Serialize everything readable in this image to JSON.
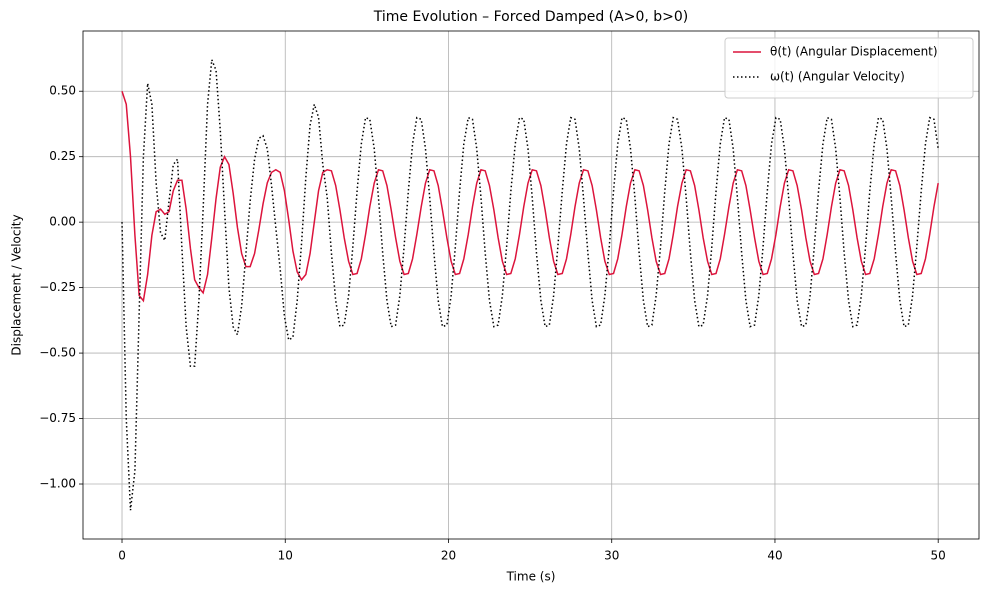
{
  "chart_data": {
    "type": "line",
    "title": "Time Evolution – Forced Damped (A>0, b>0)",
    "x_label": "Time (s)",
    "y_label": "Displacement / Velocity",
    "xlim": [
      -2.39,
      52.5
    ],
    "ylim": [
      -1.21,
      0.73
    ],
    "xticks": [
      0,
      10,
      20,
      30,
      40,
      50
    ],
    "yticks": [
      {
        "value": -1.0,
        "label": "−1.00"
      },
      {
        "value": -0.75,
        "label": "−0.75"
      },
      {
        "value": -0.5,
        "label": "−0.50"
      },
      {
        "value": -0.25,
        "label": "−0.25"
      },
      {
        "value": 0.0,
        "label": "0.00"
      },
      {
        "value": 0.25,
        "label": "0.25"
      },
      {
        "value": 0.5,
        "label": "0.50"
      }
    ],
    "grid": true,
    "legend": "upper right",
    "x": [
      0,
      0.26,
      0.52,
      0.79,
      1.05,
      1.31,
      1.57,
      1.83,
      2.09,
      2.36,
      2.62,
      2.88,
      3.14,
      3.4,
      3.67,
      3.93,
      4.19,
      4.45,
      4.71,
      4.97,
      5.24,
      5.5,
      5.76,
      6.02,
      6.28,
      6.55,
      6.81,
      7.07,
      7.33,
      7.59,
      7.85,
      8.12,
      8.38,
      8.64,
      8.9,
      9.16,
      9.42,
      9.69,
      9.95,
      10.21,
      10.47,
      10.73,
      11.0,
      11.26,
      11.52,
      11.78,
      12.04,
      12.3,
      12.57,
      12.83,
      13.09,
      13.35,
      13.61,
      13.88,
      14.14,
      14.4,
      14.66,
      14.92,
      15.18,
      15.45,
      15.71,
      15.97,
      16.23,
      16.49,
      16.76,
      17.02,
      17.28,
      17.54,
      17.8,
      18.06,
      18.33,
      18.59,
      18.85,
      19.11,
      19.37,
      19.63,
      19.9,
      20.16,
      20.42,
      20.68,
      20.94,
      21.21,
      21.47,
      21.73,
      21.99,
      22.25,
      22.51,
      22.78,
      23.04,
      23.3,
      23.56,
      23.82,
      24.09,
      24.35,
      24.61,
      24.87,
      25.13,
      25.39,
      25.66,
      25.92,
      26.18,
      26.44,
      26.7,
      26.97,
      27.23,
      27.49,
      27.75,
      28.01,
      28.27,
      28.54,
      28.8,
      29.06,
      29.32,
      29.58,
      29.85,
      30.11,
      30.37,
      30.63,
      30.89,
      31.15,
      31.42,
      31.68,
      31.94,
      32.2,
      32.46,
      32.72,
      32.99,
      33.25,
      33.51,
      33.77,
      34.03,
      34.3,
      34.56,
      34.82,
      35.08,
      35.34,
      35.6,
      35.87,
      36.13,
      36.39,
      36.65,
      36.91,
      37.18,
      37.44,
      37.7,
      37.96,
      38.22,
      38.48,
      38.75,
      39.01,
      39.27,
      39.53,
      39.79,
      40.06,
      40.32,
      40.58,
      40.84,
      41.1,
      41.36,
      41.63,
      41.89,
      42.15,
      42.41,
      42.67,
      42.94,
      43.2,
      43.46,
      43.72,
      43.98,
      44.24,
      44.51,
      44.77,
      45.03,
      45.29,
      45.55,
      45.81,
      46.08,
      46.34,
      46.6,
      46.86,
      47.12,
      47.39,
      47.65,
      47.91,
      48.17,
      48.43,
      48.69,
      48.96,
      49.22,
      49.48,
      49.74,
      50.0
    ],
    "series": [
      {
        "name": "θ(t) (Angular Displacement)",
        "color": "#dc143c",
        "linestyle": "solid",
        "values": [
          0.5,
          0.45,
          0.25,
          -0.05,
          -0.28,
          -0.3,
          -0.2,
          -0.05,
          0.04,
          0.05,
          0.03,
          0.04,
          0.12,
          0.16,
          0.16,
          0.05,
          -0.1,
          -0.22,
          -0.25,
          -0.27,
          -0.2,
          -0.06,
          0.09,
          0.21,
          0.25,
          0.22,
          0.11,
          -0.02,
          -0.12,
          -0.17,
          -0.17,
          -0.12,
          -0.03,
          0.07,
          0.15,
          0.19,
          0.2,
          0.19,
          0.12,
          0.01,
          -0.11,
          -0.19,
          -0.22,
          -0.2,
          -0.12,
          0.0,
          0.12,
          0.19,
          0.2,
          0.196,
          0.14,
          0.047,
          -0.059,
          -0.149,
          -0.2,
          -0.196,
          -0.14,
          -0.047,
          0.059,
          0.149,
          0.2,
          0.196,
          0.14,
          0.047,
          -0.059,
          -0.149,
          -0.2,
          -0.196,
          -0.14,
          -0.047,
          0.059,
          0.149,
          0.2,
          0.196,
          0.14,
          0.047,
          -0.059,
          -0.149,
          -0.2,
          -0.196,
          -0.14,
          -0.047,
          0.059,
          0.149,
          0.2,
          0.196,
          0.14,
          0.047,
          -0.059,
          -0.149,
          -0.2,
          -0.196,
          -0.14,
          -0.047,
          0.059,
          0.149,
          0.2,
          0.196,
          0.14,
          0.047,
          -0.059,
          -0.149,
          -0.2,
          -0.196,
          -0.14,
          -0.047,
          0.059,
          0.149,
          0.2,
          0.196,
          0.14,
          0.047,
          -0.059,
          -0.149,
          -0.2,
          -0.196,
          -0.14,
          -0.047,
          0.059,
          0.149,
          0.2,
          0.196,
          0.14,
          0.047,
          -0.059,
          -0.149,
          -0.2,
          -0.196,
          -0.14,
          -0.047,
          0.059,
          0.149,
          0.2,
          0.196,
          0.14,
          0.047,
          -0.059,
          -0.149,
          -0.2,
          -0.196,
          -0.14,
          -0.047,
          0.059,
          0.149,
          0.2,
          0.196,
          0.14,
          0.047,
          -0.059,
          -0.149,
          -0.2,
          -0.196,
          -0.14,
          -0.047,
          0.059,
          0.149,
          0.2,
          0.196,
          0.14,
          0.047,
          -0.059,
          -0.149,
          -0.2,
          -0.196,
          -0.14,
          -0.047,
          0.059,
          0.149,
          0.2,
          0.196,
          0.14,
          0.047,
          -0.059,
          -0.149,
          -0.2,
          -0.196,
          -0.14,
          -0.047,
          0.059,
          0.149,
          0.2,
          0.196,
          0.14,
          0.047,
          -0.059,
          -0.149,
          -0.2,
          -0.196,
          -0.14,
          -0.047,
          0.059,
          0.149
        ]
      },
      {
        "name": "ω(t) (Angular Velocity)",
        "color": "#000000",
        "linestyle": "dotted",
        "values": [
          0,
          -0.75,
          -1.1,
          -0.95,
          -0.35,
          0.25,
          0.53,
          0.45,
          0.15,
          -0.04,
          -0.07,
          0.08,
          0.22,
          0.24,
          -0.1,
          -0.4,
          -0.55,
          -0.55,
          -0.3,
          0.05,
          0.45,
          0.62,
          0.58,
          0.35,
          0.05,
          -0.25,
          -0.4,
          -0.43,
          -0.32,
          -0.12,
          0.08,
          0.24,
          0.32,
          0.33,
          0.28,
          0.14,
          -0.02,
          -0.18,
          -0.36,
          -0.45,
          -0.44,
          -0.3,
          -0.08,
          0.17,
          0.37,
          0.45,
          0.4,
          0.22,
          0.094,
          -0.118,
          -0.299,
          -0.399,
          -0.393,
          -0.281,
          -0.094,
          0.118,
          0.299,
          0.399,
          0.393,
          0.281,
          0.094,
          -0.118,
          -0.299,
          -0.399,
          -0.393,
          -0.281,
          -0.094,
          0.118,
          0.299,
          0.399,
          0.393,
          0.281,
          0.094,
          -0.118,
          -0.299,
          -0.399,
          -0.393,
          -0.281,
          -0.094,
          0.118,
          0.299,
          0.399,
          0.393,
          0.281,
          0.094,
          -0.118,
          -0.299,
          -0.399,
          -0.393,
          -0.281,
          -0.094,
          0.118,
          0.299,
          0.399,
          0.393,
          0.281,
          0.094,
          -0.118,
          -0.299,
          -0.399,
          -0.393,
          -0.281,
          -0.094,
          0.118,
          0.299,
          0.399,
          0.393,
          0.281,
          0.094,
          -0.118,
          -0.299,
          -0.399,
          -0.393,
          -0.281,
          -0.094,
          0.118,
          0.299,
          0.399,
          0.393,
          0.281,
          0.094,
          -0.118,
          -0.299,
          -0.399,
          -0.393,
          -0.281,
          -0.094,
          0.118,
          0.299,
          0.399,
          0.393,
          0.281,
          0.094,
          -0.118,
          -0.299,
          -0.399,
          -0.393,
          -0.281,
          -0.094,
          0.118,
          0.299,
          0.399,
          0.393,
          0.281,
          0.094,
          -0.118,
          -0.299,
          -0.399,
          -0.393,
          -0.281,
          -0.094,
          0.118,
          0.299,
          0.399,
          0.393,
          0.281,
          0.094,
          -0.118,
          -0.299,
          -0.399,
          -0.393,
          -0.281,
          -0.094,
          0.118,
          0.299,
          0.399,
          0.393,
          0.281,
          0.094,
          -0.118,
          -0.299,
          -0.399,
          -0.393,
          -0.281,
          -0.094,
          0.118,
          0.299,
          0.399,
          0.393,
          0.281,
          0.094,
          -0.118,
          -0.299,
          -0.399,
          -0.393,
          -0.281,
          -0.094,
          0.118,
          0.299,
          0.399,
          0.393,
          0.281
        ]
      }
    ]
  }
}
